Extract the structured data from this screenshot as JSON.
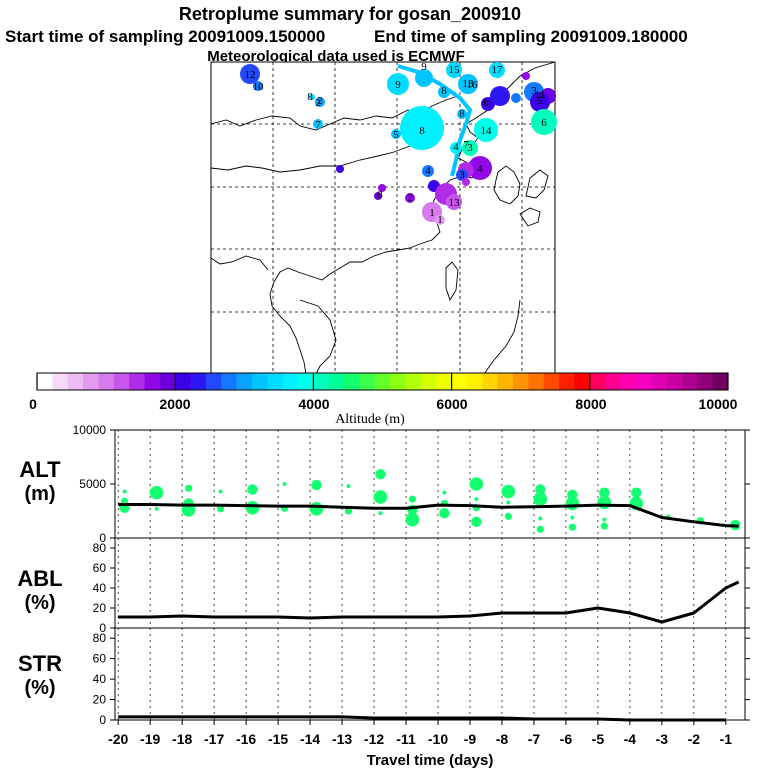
{
  "header": {
    "title": "Retroplume summary for gosan_200910",
    "start_label": "Start time of sampling 20091009.150000",
    "end_label": "End time of sampling 20091009.180000",
    "met_label": "Meteorological data used is ECMWF"
  },
  "colorbar": {
    "tick_labels": [
      "0",
      "2000",
      "4000",
      "6000",
      "8000",
      "10000"
    ],
    "title": "Altitude (m)",
    "colors": [
      "#ffffff",
      "#f6d8f8",
      "#eebcf4",
      "#e39cf0",
      "#d77aec",
      "#c856ea",
      "#b22be8",
      "#9208e6",
      "#6e00e0",
      "#3a00e6",
      "#2f17f4",
      "#2249fb",
      "#1579ff",
      "#0aa2ff",
      "#00c4ff",
      "#00dcff",
      "#00f0ff",
      "#00ffea",
      "#00ffbe",
      "#00ff96",
      "#14ff70",
      "#3cff4c",
      "#64ff28",
      "#8cff14",
      "#b4ff0a",
      "#d4ff00",
      "#ecff00",
      "#ffff00",
      "#fff000",
      "#ffd400",
      "#ffb400",
      "#ff9400",
      "#ff7400",
      "#ff4a00",
      "#ff2000",
      "#ff0000",
      "#ff0060",
      "#ff0090",
      "#ff00b0",
      "#f400c0",
      "#e000b4",
      "#c800a4",
      "#ac0090",
      "#900078",
      "#700060"
    ]
  },
  "map": {
    "plume_labels": [
      "12",
      "10",
      "8",
      "2",
      "7",
      "9",
      "8",
      "15",
      "17",
      "13",
      "6",
      "14",
      "3",
      "5",
      "11",
      "4",
      "8",
      "16",
      "4",
      "5",
      "8",
      "7",
      "4",
      "3",
      "1",
      "9",
      "2",
      "6",
      "1",
      "2",
      "8",
      "3",
      "13"
    ]
  },
  "panels": {
    "alt": {
      "label_line1": "ALT",
      "label_line2": "(m)"
    },
    "abl": {
      "label_line1": "ABL",
      "label_line2": "(%)"
    },
    "str": {
      "label_line1": "STR",
      "label_line2": "(%)"
    }
  },
  "chart_data": [
    {
      "type": "line",
      "title": "ALT",
      "ylabel": "ALT (m)",
      "xlabel": "Travel time (days)",
      "xlim": [
        -20,
        -1
      ],
      "ylim": [
        0,
        10000
      ],
      "x_ticks": [
        -20,
        -19,
        -18,
        -17,
        -16,
        -15,
        -14,
        -13,
        -12,
        -11,
        -10,
        -9,
        -8,
        -7,
        -6,
        -5,
        -4,
        -3,
        -2,
        -1
      ],
      "y_ticks": [
        0,
        5000,
        10000
      ],
      "y_tick_labels": [
        "0",
        "5000",
        "10000"
      ],
      "series": [
        {
          "name": "mean altitude",
          "x": [
            -20,
            -19,
            -18,
            -17,
            -16,
            -15,
            -14,
            -13,
            -12,
            -11,
            -10,
            -9,
            -8,
            -7,
            -6,
            -5,
            -4,
            -3,
            -2,
            -1,
            -0.6
          ],
          "y": [
            3100,
            3100,
            3050,
            3050,
            3000,
            2950,
            2950,
            2850,
            2750,
            2750,
            3050,
            3000,
            2850,
            2900,
            2950,
            3050,
            3000,
            1900,
            1500,
            1150,
            1100
          ]
        },
        {
          "name": "cluster altitudes",
          "points": [
            {
              "x": -19.8,
              "y": 4300
            },
            {
              "x": -19.8,
              "y": 3400
            },
            {
              "x": -19.8,
              "y": 2800
            },
            {
              "x": -18.8,
              "y": 4200
            },
            {
              "x": -18.8,
              "y": 2700
            },
            {
              "x": -17.8,
              "y": 4600
            },
            {
              "x": -17.8,
              "y": 3200
            },
            {
              "x": -17.8,
              "y": 2600
            },
            {
              "x": -16.8,
              "y": 4300
            },
            {
              "x": -16.8,
              "y": 2700
            },
            {
              "x": -15.8,
              "y": 4500
            },
            {
              "x": -15.8,
              "y": 2800
            },
            {
              "x": -14.8,
              "y": 5000
            },
            {
              "x": -14.8,
              "y": 2750
            },
            {
              "x": -13.8,
              "y": 4900
            },
            {
              "x": -13.8,
              "y": 2700
            },
            {
              "x": -12.8,
              "y": 4800
            },
            {
              "x": -12.8,
              "y": 2500
            },
            {
              "x": -11.8,
              "y": 5900
            },
            {
              "x": -11.8,
              "y": 3800
            },
            {
              "x": -11.8,
              "y": 2300
            },
            {
              "x": -10.8,
              "y": 3600
            },
            {
              "x": -10.8,
              "y": 2600
            },
            {
              "x": -10.8,
              "y": 1700
            },
            {
              "x": -9.8,
              "y": 4200
            },
            {
              "x": -9.8,
              "y": 3200
            },
            {
              "x": -9.8,
              "y": 2300
            },
            {
              "x": -8.8,
              "y": 5000
            },
            {
              "x": -8.8,
              "y": 3600
            },
            {
              "x": -8.8,
              "y": 2800
            },
            {
              "x": -8.8,
              "y": 1500
            },
            {
              "x": -7.8,
              "y": 4300
            },
            {
              "x": -7.8,
              "y": 3300
            },
            {
              "x": -7.8,
              "y": 2000
            },
            {
              "x": -6.8,
              "y": 4500
            },
            {
              "x": -6.8,
              "y": 3600
            },
            {
              "x": -6.8,
              "y": 1800
            },
            {
              "x": -6.8,
              "y": 800
            },
            {
              "x": -5.8,
              "y": 4000
            },
            {
              "x": -5.8,
              "y": 3200
            },
            {
              "x": -5.8,
              "y": 1900
            },
            {
              "x": -5.8,
              "y": 1000
            },
            {
              "x": -4.8,
              "y": 4200
            },
            {
              "x": -4.8,
              "y": 3300
            },
            {
              "x": -4.8,
              "y": 1700
            },
            {
              "x": -4.8,
              "y": 1100
            },
            {
              "x": -3.8,
              "y": 4200
            },
            {
              "x": -3.8,
              "y": 3200
            },
            {
              "x": -2.8,
              "y": 2000
            },
            {
              "x": -1.8,
              "y": 1600
            },
            {
              "x": -0.7,
              "y": 1200
            }
          ]
        }
      ]
    },
    {
      "type": "line",
      "title": "ABL",
      "ylabel": "ABL (%)",
      "xlim": [
        -20,
        -1
      ],
      "ylim": [
        0,
        90
      ],
      "y_ticks": [
        0,
        20,
        40,
        60,
        80
      ],
      "y_tick_labels": [
        "0",
        "20",
        "40",
        "60",
        "80"
      ],
      "series": [
        {
          "name": "ABL fraction",
          "x": [
            -20,
            -19,
            -18,
            -17,
            -16,
            -15,
            -14,
            -13,
            -12,
            -11,
            -10,
            -9,
            -8,
            -7,
            -6,
            -5,
            -4,
            -3,
            -2,
            -1,
            -0.6
          ],
          "y": [
            11,
            11,
            12,
            11,
            11,
            11,
            10,
            11,
            11,
            11,
            11,
            12,
            15,
            15,
            15,
            20,
            15,
            6,
            15,
            40,
            46
          ]
        }
      ]
    },
    {
      "type": "line",
      "title": "STR",
      "ylabel": "STR (%)",
      "xlim": [
        -20,
        -1
      ],
      "ylim": [
        0,
        90
      ],
      "y_ticks": [
        0,
        20,
        40,
        60,
        80
      ],
      "y_tick_labels": [
        "0",
        "20",
        "40",
        "60",
        "80"
      ],
      "series": [
        {
          "name": "STR fraction",
          "x": [
            -20,
            -19,
            -18,
            -17,
            -16,
            -15,
            -14,
            -13,
            -12,
            -11,
            -10,
            -9,
            -8,
            -7,
            -6,
            -5,
            -4,
            -3,
            -2,
            -1
          ],
          "y": [
            3,
            3,
            3,
            3,
            3,
            3,
            3,
            3,
            2,
            2,
            2,
            2,
            2,
            1,
            1,
            1,
            0,
            0,
            0,
            0
          ]
        }
      ]
    }
  ],
  "x_axis": {
    "tick_labels": [
      "-20",
      "-19",
      "-18",
      "-17",
      "-16",
      "-15",
      "-14",
      "-13",
      "-12",
      "-11",
      "-10",
      "-9",
      "-8",
      "-7",
      "-6",
      "-5",
      "-4",
      "-3",
      "-2",
      "-1"
    ],
    "title": "Travel time (days)"
  }
}
